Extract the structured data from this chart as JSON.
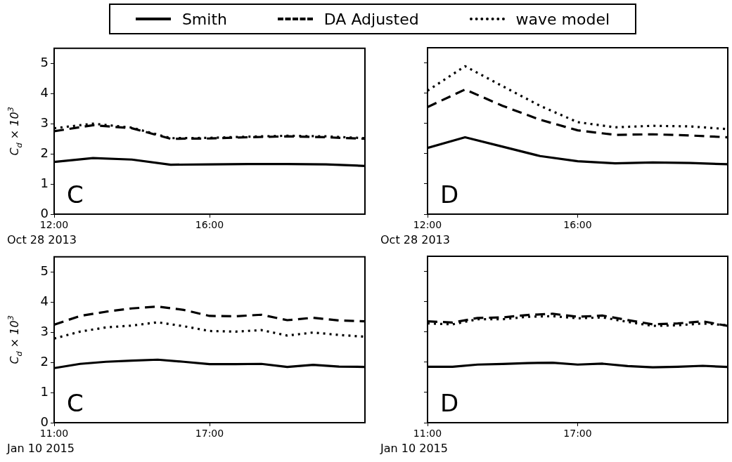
{
  "chart_data": [
    {
      "type": "line",
      "x": [
        12,
        13,
        14,
        15,
        16,
        17,
        18,
        19,
        20
      ],
      "xlim": [
        12,
        20
      ],
      "xticks": [
        {
          "value": 12,
          "label": "12:00"
        },
        {
          "value": 16,
          "label": "16:00"
        }
      ],
      "ylim": [
        0,
        5.5
      ],
      "yticks": [
        0,
        1,
        2,
        3,
        4,
        5
      ],
      "ylabel": "C$_{d}$ × 10$^{3}$",
      "annotations": [
        "C",
        "Oct 28 2013"
      ],
      "legend": "top",
      "series": [
        {
          "name": "Smith",
          "color": "#000000",
          "line_style": "solid",
          "values": [
            1.73,
            1.86,
            1.81,
            1.64,
            1.65,
            1.66,
            1.66,
            1.65,
            1.6
          ]
        },
        {
          "name": "DA Adjusted",
          "color": "#000000",
          "line_style": "dashed",
          "values": [
            2.75,
            2.95,
            2.85,
            2.5,
            2.51,
            2.55,
            2.58,
            2.55,
            2.5
          ]
        },
        {
          "name": "wave model",
          "color": "#000000",
          "line_style": "dotted",
          "values": [
            2.85,
            3.0,
            2.87,
            2.52,
            2.53,
            2.57,
            2.6,
            2.58,
            2.52
          ]
        }
      ]
    },
    {
      "type": "line",
      "x": [
        12,
        13,
        14,
        15,
        16,
        17,
        18,
        19,
        20
      ],
      "xlim": [
        12,
        20
      ],
      "xticks": [
        {
          "value": 12,
          "label": "12:00"
        },
        {
          "value": 16,
          "label": "16:00"
        }
      ],
      "ylim": [
        0,
        5.5
      ],
      "yticks": [
        0,
        1,
        2,
        3,
        4,
        5
      ],
      "tick_labels": "x",
      "annotations": [
        "D",
        "Oct 28 2013"
      ],
      "series": [
        {
          "color": "#000000",
          "line_style": "solid",
          "values": [
            2.19,
            2.54,
            2.23,
            1.92,
            1.75,
            1.68,
            1.71,
            1.69,
            1.65
          ]
        },
        {
          "color": "#000000",
          "line_style": "dashed",
          "values": [
            3.54,
            4.12,
            3.58,
            3.12,
            2.77,
            2.62,
            2.64,
            2.6,
            2.54
          ]
        },
        {
          "color": "#000000",
          "line_style": "dotted",
          "values": [
            4.08,
            4.89,
            4.23,
            3.58,
            3.04,
            2.87,
            2.92,
            2.9,
            2.81
          ]
        }
      ]
    },
    {
      "type": "line",
      "x": [
        11,
        12,
        13,
        14,
        15,
        16,
        17,
        18,
        19,
        20,
        21,
        22,
        23
      ],
      "xlim": [
        11,
        23
      ],
      "xticks": [
        {
          "value": 11,
          "label": "11:00"
        },
        {
          "value": 17,
          "label": "17:00"
        }
      ],
      "ylim": [
        0,
        5.5
      ],
      "yticks": [
        0,
        1,
        2,
        3,
        4,
        5
      ],
      "ylabel": "C$_{d}$ × 10$^{3}$",
      "annotations": [
        "C",
        "Jan 10 2015"
      ],
      "series": [
        {
          "color": "#000000",
          "line_style": "solid",
          "values": [
            1.81,
            1.95,
            2.02,
            2.06,
            2.09,
            2.02,
            1.94,
            1.94,
            1.95,
            1.85,
            1.92,
            1.86,
            1.85
          ]
        },
        {
          "color": "#000000",
          "line_style": "dashed",
          "values": [
            3.25,
            3.54,
            3.68,
            3.79,
            3.85,
            3.74,
            3.54,
            3.53,
            3.58,
            3.4,
            3.48,
            3.39,
            3.36
          ]
        },
        {
          "color": "#000000",
          "line_style": "dotted",
          "values": [
            2.79,
            3.02,
            3.16,
            3.22,
            3.33,
            3.2,
            3.04,
            3.02,
            3.07,
            2.89,
            2.99,
            2.91,
            2.85
          ]
        }
      ]
    },
    {
      "type": "line",
      "x": [
        11,
        12,
        13,
        14,
        15,
        16,
        17,
        18,
        19,
        20,
        21,
        22,
        23
      ],
      "xlim": [
        11,
        23
      ],
      "xticks": [
        {
          "value": 11,
          "label": "11:00"
        },
        {
          "value": 17,
          "label": "17:00"
        }
      ],
      "ylim": [
        0,
        5.5
      ],
      "yticks": [
        0,
        1,
        2,
        3,
        4,
        5
      ],
      "tick_labels": "x",
      "annotations": [
        "D",
        "Jan 10 2015"
      ],
      "series": [
        {
          "color": "#000000",
          "line_style": "solid",
          "values": [
            1.85,
            1.85,
            1.92,
            1.94,
            1.97,
            1.98,
            1.92,
            1.95,
            1.87,
            1.83,
            1.85,
            1.88,
            1.84
          ]
        },
        {
          "color": "#000000",
          "line_style": "dashed",
          "values": [
            3.35,
            3.31,
            3.46,
            3.48,
            3.56,
            3.6,
            3.5,
            3.54,
            3.39,
            3.25,
            3.28,
            3.35,
            3.2
          ]
        },
        {
          "color": "#000000",
          "line_style": "dotted",
          "values": [
            3.28,
            3.25,
            3.42,
            3.42,
            3.5,
            3.52,
            3.45,
            3.48,
            3.33,
            3.2,
            3.22,
            3.28,
            3.22
          ]
        }
      ]
    }
  ]
}
